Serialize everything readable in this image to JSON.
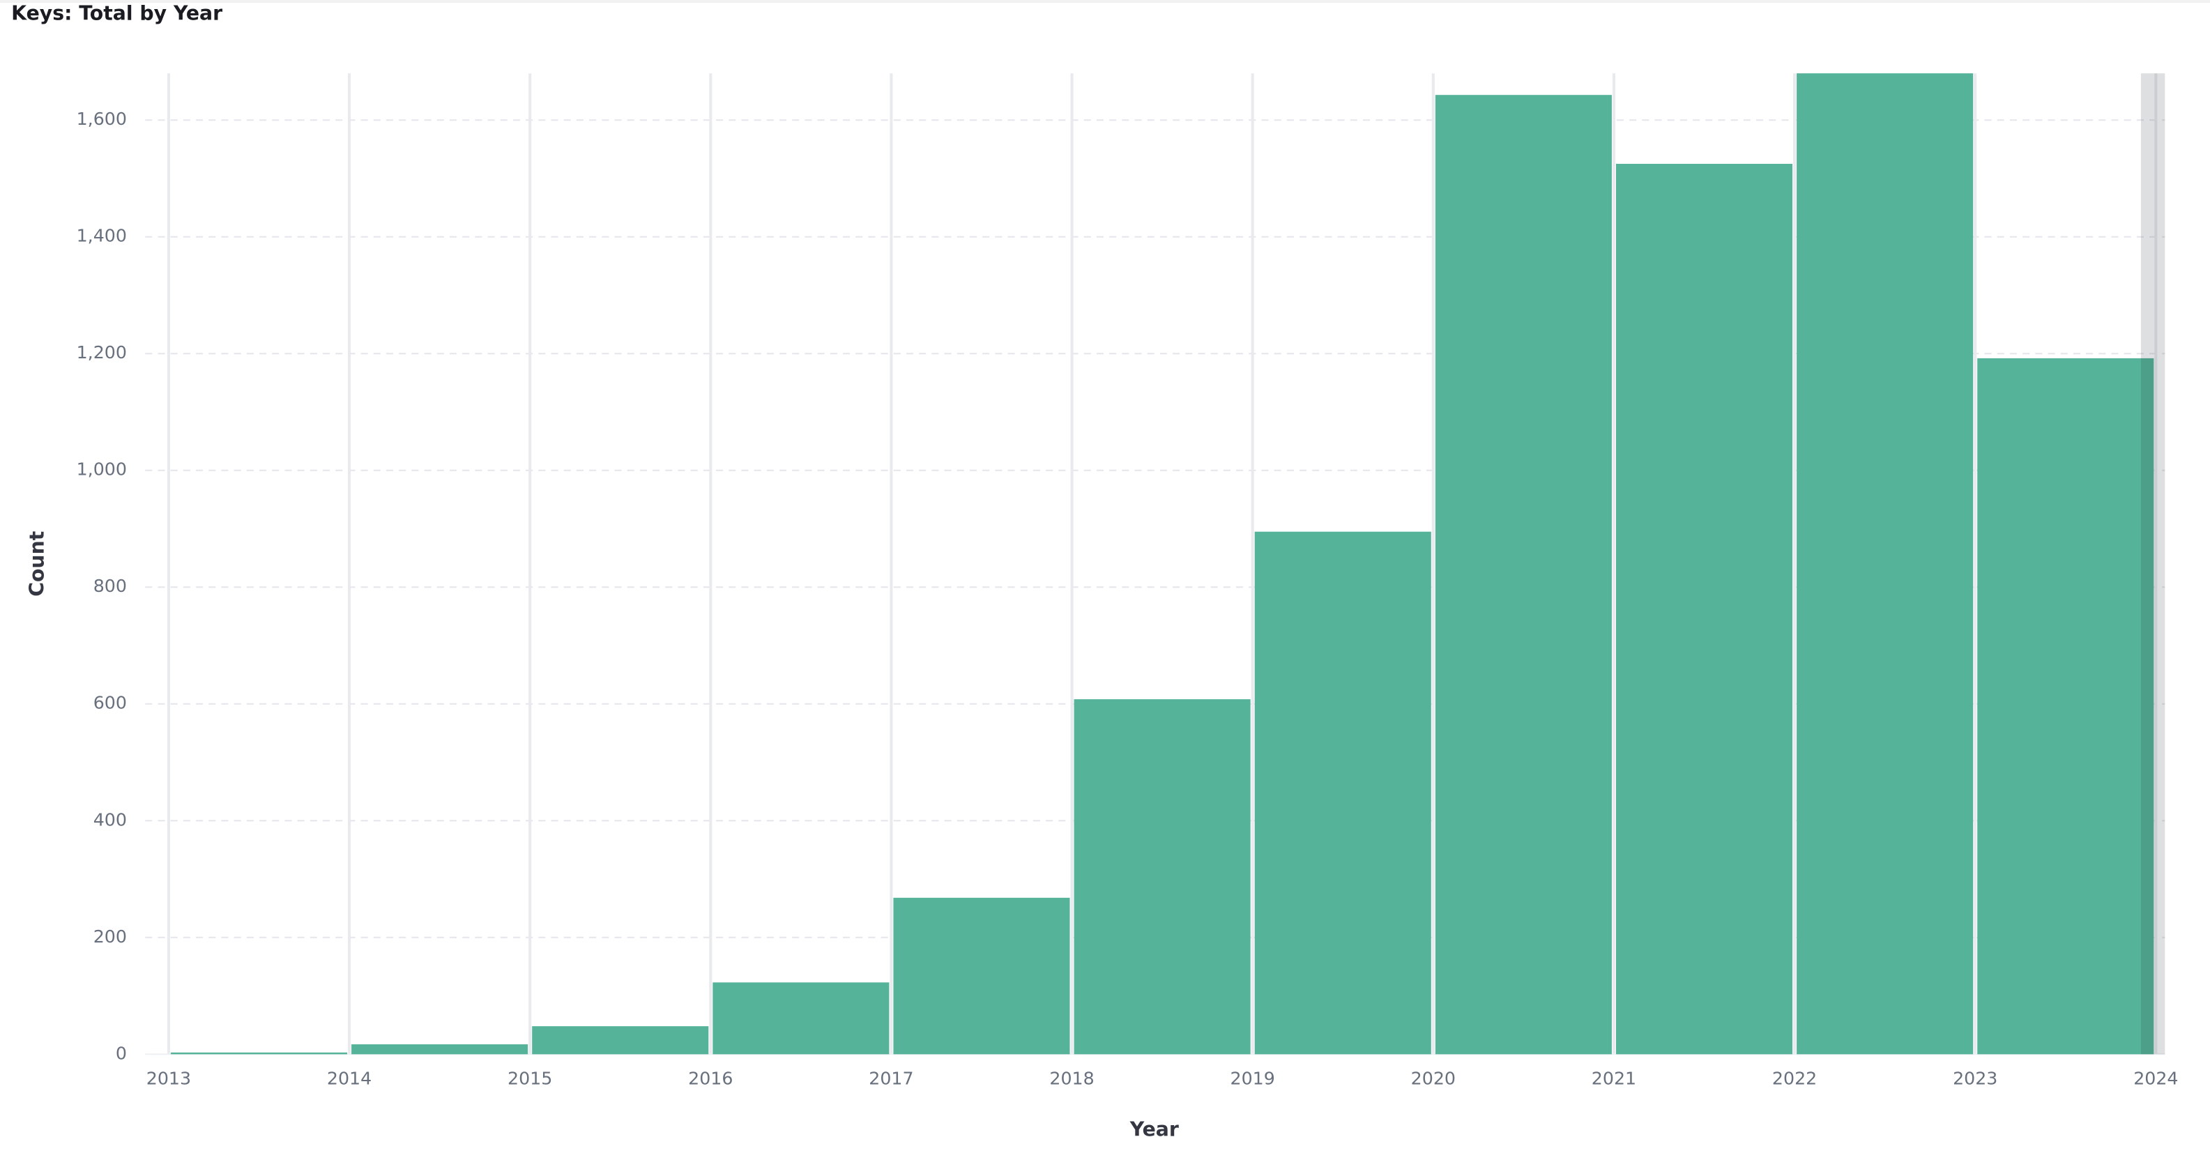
{
  "chart_data": {
    "type": "histogram",
    "title": "Keys: Total by Year",
    "x_label": "Year",
    "y_label": "Count",
    "bins": [
      2013,
      2014,
      2015,
      2016,
      2017,
      2018,
      2019,
      2020,
      2021,
      2022,
      2023,
      2024
    ],
    "values": [
      3,
      17,
      48,
      123,
      268,
      608,
      895,
      1643,
      1525,
      1680,
      1192
    ],
    "color": "#54b399",
    "xlim": [
      2012.87,
      2024.05
    ],
    "xticks": [
      2013,
      2014,
      2015,
      2016,
      2017,
      2018,
      2019,
      2020,
      2021,
      2022,
      2023,
      2024
    ],
    "ylim": [
      0,
      1680
    ],
    "yticks": [
      0,
      200,
      400,
      600,
      800,
      {
        "value": 1000,
        "label": "1,000"
      },
      {
        "value": 1200,
        "label": "1,200"
      },
      {
        "value": 1400,
        "label": "1,400"
      },
      {
        "value": 1600,
        "label": "1,600"
      }
    ],
    "grid": true
  }
}
